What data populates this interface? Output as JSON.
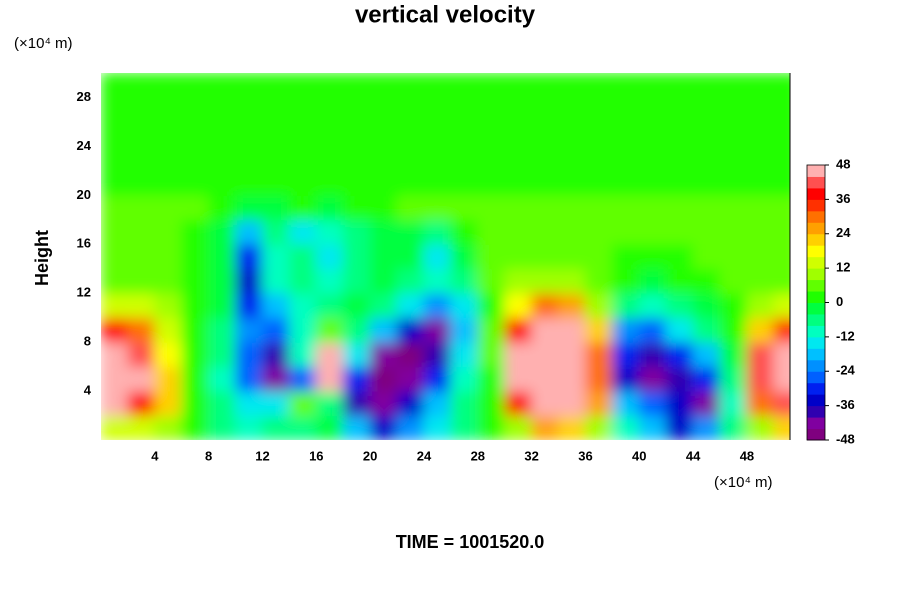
{
  "chart_data": {
    "type": "contour",
    "title": "vertical velocity",
    "y_unit": "(×10⁴ m)",
    "x_unit": "(×10⁴ m)",
    "ylabel": "Height",
    "footer": "TIME = 1001520.0",
    "xlim": [
      0,
      51.2
    ],
    "ylim": [
      0,
      30
    ],
    "xticks": [
      4,
      8,
      12,
      16,
      20,
      24,
      28,
      32,
      36,
      40,
      44,
      48
    ],
    "yticks": [
      4,
      8,
      12,
      16,
      20,
      24,
      28
    ],
    "zlim": [
      -48,
      48
    ],
    "zticks": [
      -48,
      -36,
      -24,
      -12,
      0,
      12,
      24,
      36,
      48
    ],
    "colors": [
      "#7f007f",
      "#8000a0",
      "#3000b0",
      "#0000c8",
      "#0020f0",
      "#0060ff",
      "#0090ff",
      "#00c0ff",
      "#00e8f0",
      "#00ffc0",
      "#00ff80",
      "#00ff40",
      "#20ff00",
      "#60ff00",
      "#a0ff00",
      "#d0ff00",
      "#ffff00",
      "#ffd000",
      "#ffa000",
      "#ff7000",
      "#ff3000",
      "#ff0000",
      "#ff5050",
      "#ffb0b0"
    ],
    "x": [
      1,
      3,
      5,
      7,
      9,
      11,
      13,
      15,
      17,
      19,
      21,
      23,
      25,
      27,
      29,
      31,
      33,
      35,
      37,
      39,
      41,
      43,
      45,
      47,
      49,
      51
    ],
    "y": [
      1,
      3,
      5,
      7,
      9,
      11,
      13,
      15,
      17,
      19,
      21,
      23,
      25,
      27,
      29
    ],
    "z": [
      [
        12,
        14,
        8,
        0,
        -6,
        -10,
        -8,
        -6,
        -4,
        -20,
        -36,
        -24,
        -14,
        -6,
        0,
        10,
        24,
        20,
        8,
        -12,
        -20,
        -36,
        -24,
        -8,
        10,
        20
      ],
      [
        44,
        36,
        20,
        2,
        -8,
        -16,
        -14,
        6,
        -8,
        -40,
        -44,
        -36,
        -20,
        -8,
        2,
        36,
        48,
        48,
        24,
        -20,
        -28,
        -36,
        -44,
        -12,
        30,
        40
      ],
      [
        48,
        44,
        20,
        2,
        -10,
        -28,
        -44,
        -28,
        48,
        -30,
        -48,
        -44,
        -30,
        -10,
        2,
        48,
        48,
        48,
        30,
        -36,
        -44,
        -40,
        -32,
        -8,
        40,
        48
      ],
      [
        48,
        40,
        16,
        2,
        -8,
        -28,
        -40,
        -10,
        44,
        -16,
        -44,
        -48,
        -40,
        -16,
        4,
        48,
        48,
        48,
        28,
        -32,
        -40,
        -30,
        -20,
        -4,
        40,
        48
      ],
      [
        36,
        28,
        12,
        2,
        -6,
        -24,
        -28,
        -12,
        4,
        -8,
        -20,
        -36,
        -44,
        -20,
        4,
        36,
        48,
        44,
        20,
        -24,
        -28,
        -16,
        -8,
        0,
        20,
        32
      ],
      [
        14,
        12,
        8,
        2,
        -4,
        -32,
        -20,
        -10,
        -6,
        -4,
        -8,
        -14,
        -24,
        -16,
        2,
        16,
        28,
        24,
        10,
        -8,
        -10,
        -6,
        -2,
        2,
        8,
        12
      ],
      [
        6,
        6,
        4,
        2,
        -4,
        -36,
        -12,
        -8,
        -12,
        -6,
        -4,
        -6,
        -10,
        -6,
        4,
        8,
        10,
        8,
        6,
        0,
        -2,
        0,
        2,
        4,
        6,
        6
      ],
      [
        6,
        6,
        4,
        2,
        -4,
        -32,
        -10,
        -8,
        -16,
        -8,
        -4,
        -4,
        -14,
        -4,
        4,
        6,
        6,
        6,
        4,
        2,
        0,
        2,
        4,
        4,
        6,
        6
      ],
      [
        6,
        4,
        4,
        2,
        -2,
        -20,
        -8,
        -14,
        -10,
        -6,
        -4,
        -2,
        -6,
        2,
        4,
        6,
        6,
        6,
        4,
        4,
        4,
        4,
        4,
        4,
        6,
        6
      ],
      [
        6,
        6,
        4,
        4,
        2,
        -4,
        -2,
        0,
        -2,
        2,
        2,
        4,
        4,
        4,
        6,
        6,
        6,
        6,
        6,
        6,
        6,
        6,
        6,
        6,
        6,
        6
      ],
      [
        2,
        2,
        2,
        2,
        2,
        2,
        2,
        2,
        2,
        2,
        2,
        2,
        2,
        2,
        2,
        2,
        2,
        2,
        2,
        2,
        2,
        2,
        2,
        2,
        2,
        2
      ],
      [
        2,
        2,
        2,
        2,
        2,
        2,
        2,
        2,
        2,
        2,
        2,
        2,
        2,
        2,
        2,
        2,
        2,
        2,
        2,
        2,
        2,
        2,
        2,
        2,
        2,
        2
      ],
      [
        2,
        2,
        2,
        2,
        2,
        2,
        2,
        2,
        2,
        2,
        2,
        2,
        2,
        2,
        2,
        2,
        2,
        2,
        2,
        2,
        2,
        2,
        2,
        2,
        2,
        2
      ],
      [
        2,
        2,
        2,
        2,
        2,
        2,
        2,
        2,
        2,
        2,
        2,
        2,
        2,
        2,
        2,
        2,
        2,
        2,
        2,
        2,
        2,
        2,
        2,
        2,
        2,
        2
      ],
      [
        2,
        2,
        2,
        2,
        2,
        2,
        2,
        2,
        2,
        2,
        2,
        2,
        2,
        2,
        2,
        2,
        2,
        2,
        2,
        2,
        2,
        2,
        2,
        2,
        2,
        2
      ]
    ]
  }
}
